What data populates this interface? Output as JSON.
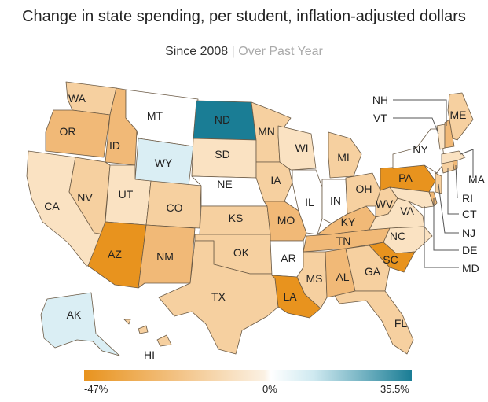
{
  "title": "Change in state spending, per student, inflation-adjusted dollars",
  "tabs": {
    "active": "Since 2008",
    "separator": "|",
    "inactive": "Over Past Year"
  },
  "legend": {
    "min_label": "-47%",
    "mid_label": "0%",
    "max_label": "35.5%",
    "colors": {
      "min": "#e8931e",
      "zero": "#ffffff",
      "max": "#1a7d95"
    }
  },
  "states": {
    "WA": "WA",
    "OR": "OR",
    "CA": "CA",
    "NV": "NV",
    "ID": "ID",
    "MT": "MT",
    "WY": "WY",
    "UT": "UT",
    "AZ": "AZ",
    "CO": "CO",
    "NM": "NM",
    "ND": "ND",
    "SD": "SD",
    "NE": "NE",
    "KS": "KS",
    "OK": "OK",
    "TX": "TX",
    "MN": "MN",
    "IA": "IA",
    "MO": "MO",
    "AR": "AR",
    "LA": "LA",
    "WI": "WI",
    "IL": "IL",
    "MS": "MS",
    "MI": "MI",
    "IN": "IN",
    "KY": "KY",
    "TN": "TN",
    "AL": "AL",
    "OH": "OH",
    "GA": "GA",
    "FL": "FL",
    "WV": "WV",
    "VA": "VA",
    "NC": "NC",
    "SC": "SC",
    "PA": "PA",
    "NY": "NY",
    "ME": "ME",
    "AK": "AK",
    "HI": "HI",
    "NH": "NH",
    "VT": "VT",
    "MA": "MA",
    "RI": "RI",
    "CT": "CT",
    "NJ": "NJ",
    "DE": "DE",
    "MD": "MD"
  },
  "colors": {
    "white": "#ffffff",
    "pale": "#fae2c2",
    "light": "#f6d0a0",
    "mid": "#f1b977",
    "dark": "#e8931e",
    "blue_pale": "#daeef4",
    "blue_dark": "#1a7d95"
  }
}
